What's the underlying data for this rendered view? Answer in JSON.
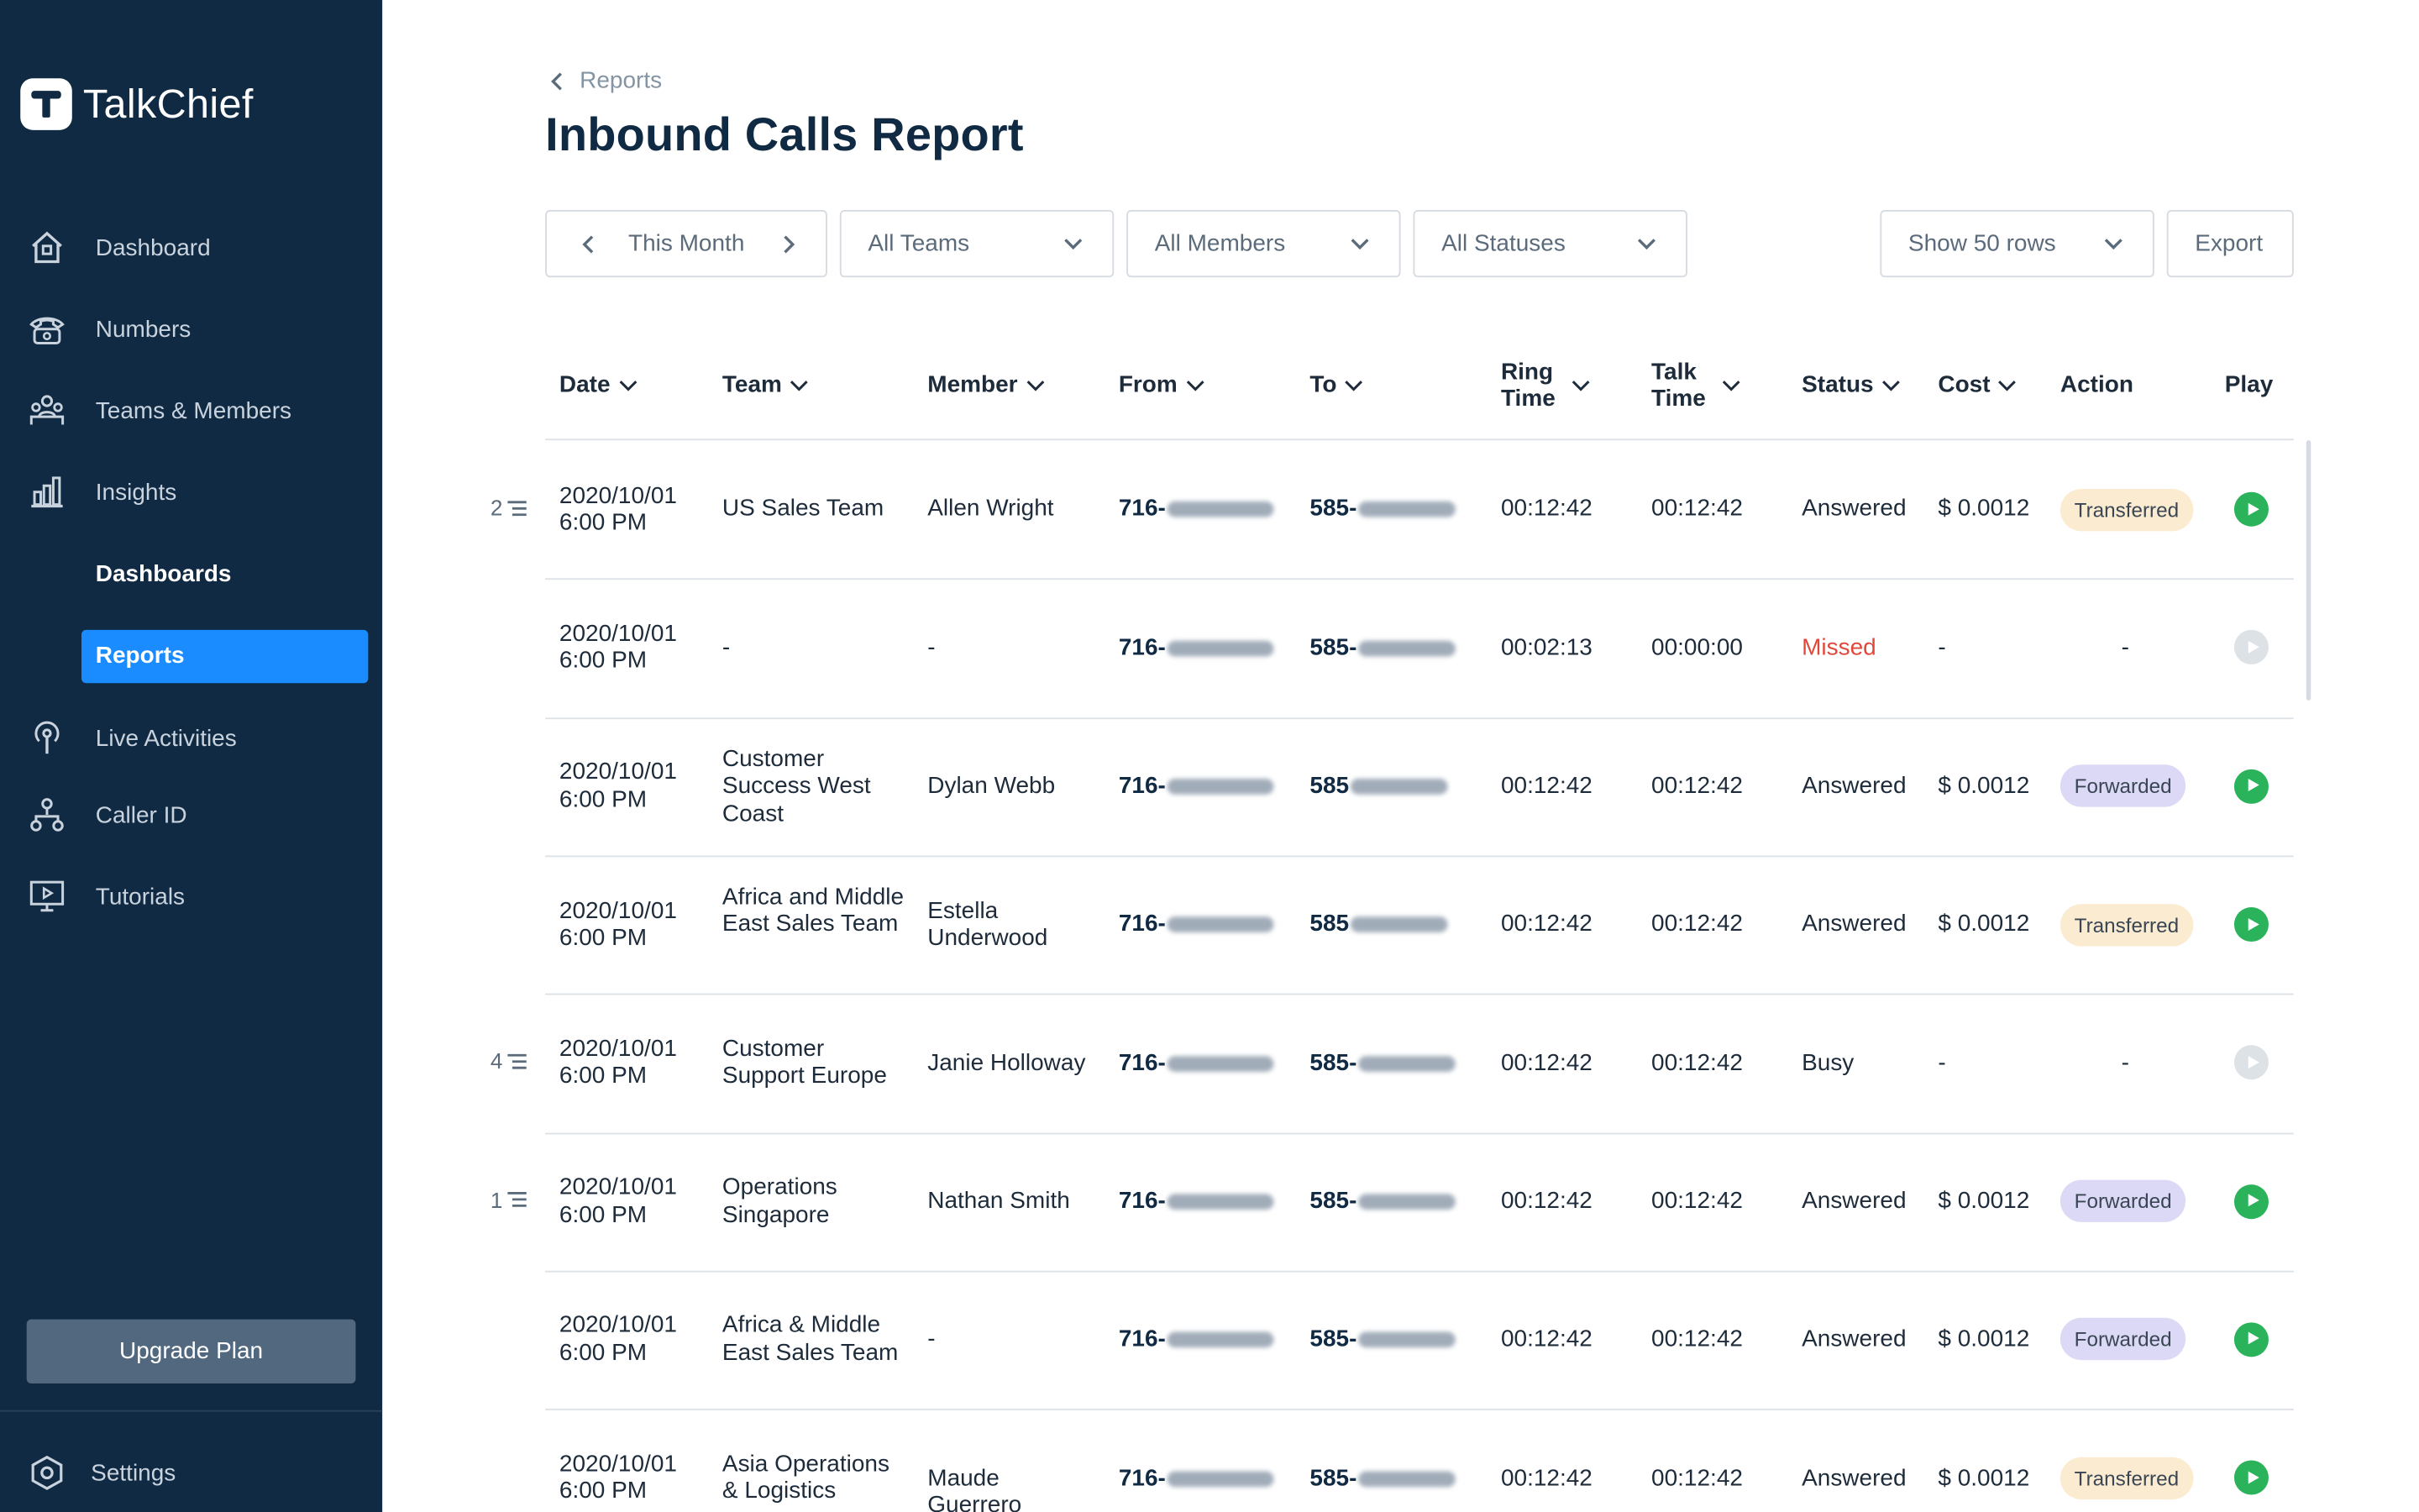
{
  "app": {
    "brand": "TalkChief"
  },
  "sidebar": {
    "items": [
      {
        "label": "Dashboard",
        "icon": "home-icon"
      },
      {
        "label": "Numbers",
        "icon": "phone-icon"
      },
      {
        "label": "Teams & Members",
        "icon": "team-icon"
      },
      {
        "label": "Insights",
        "icon": "bar-chart-icon"
      },
      {
        "label": "Live Activities",
        "icon": "broadcast-icon"
      },
      {
        "label": "Caller ID",
        "icon": "network-icon"
      },
      {
        "label": "Tutorials",
        "icon": "monitor-icon"
      }
    ],
    "insights_sub": {
      "dashboards": "Dashboards",
      "reports": "Reports"
    },
    "upgrade": "Upgrade Plan",
    "settings": "Settings"
  },
  "breadcrumb": "Reports",
  "title": "Inbound Calls Report",
  "filters": {
    "period": "This Month",
    "teams": "All Teams",
    "members": "All Members",
    "statuses": "All Statuses",
    "rows": "Show 50 rows",
    "export": "Export"
  },
  "columns": [
    "Date",
    "Team",
    "Member",
    "From",
    "To",
    "Ring Time",
    "Talk Time",
    "Status",
    "Cost",
    "Action",
    "Play"
  ],
  "rows": [
    {
      "group": "2",
      "date": "2020/10/01",
      "time": "6:00 PM",
      "team": "US Sales Team",
      "member": "Allen Wright",
      "from": "716-",
      "to": "585-",
      "ring": "00:12:42",
      "talk": "00:12:42",
      "status": "Answered",
      "cost": "$ 0.0012",
      "action": "Transferred",
      "play": true
    },
    {
      "group": "",
      "date": "2020/10/01",
      "time": "6:00 PM",
      "team": "-",
      "member": "-",
      "from": "716-",
      "to": "585-",
      "ring": "00:02:13",
      "talk": "00:00:00",
      "status": "Missed",
      "cost": "-",
      "action": "-",
      "play": false
    },
    {
      "group": "",
      "date": "2020/10/01",
      "time": "6:00 PM",
      "team": "Customer Success West Coast",
      "member": "Dylan Webb",
      "from": "716-",
      "to": "585",
      "ring": "00:12:42",
      "talk": "00:12:42",
      "status": "Answered",
      "cost": "$ 0.0012",
      "action": "Forwarded",
      "play": true
    },
    {
      "group": "",
      "date": "2020/10/01",
      "time": "6:00 PM",
      "team": "Africa and Middle East Sales Team",
      "member": "Estella Underwood",
      "from": "716-",
      "to": "585",
      "ring": "00:12:42",
      "talk": "00:12:42",
      "status": "Answered",
      "cost": "$ 0.0012",
      "action": "Transferred",
      "play": true
    },
    {
      "group": "4",
      "date": "2020/10/01",
      "time": "6:00 PM",
      "team": "Customer Support Europe",
      "member": "Janie Holloway",
      "from": "716-",
      "to": "585-",
      "ring": "00:12:42",
      "talk": "00:12:42",
      "status": "Busy",
      "cost": "-",
      "action": "-",
      "play": false
    },
    {
      "group": "1",
      "date": "2020/10/01",
      "time": "6:00 PM",
      "team": "Operations Singapore",
      "member": "Nathan Smith",
      "from": "716-",
      "to": "585-",
      "ring": "00:12:42",
      "talk": "00:12:42",
      "status": "Answered",
      "cost": "$ 0.0012",
      "action": "Forwarded",
      "play": true
    },
    {
      "group": "",
      "date": "2020/10/01",
      "time": "6:00 PM",
      "team": "Africa & Middle East Sales Team",
      "member": "-",
      "from": "716-",
      "to": "585-",
      "ring": "00:12:42",
      "talk": "00:12:42",
      "status": "Answered",
      "cost": "$ 0.0012",
      "action": "Forwarded",
      "play": true
    },
    {
      "group": "",
      "date": "2020/10/01",
      "time": "6:00 PM",
      "team": "Asia Operations & Logistics",
      "member": "Maude Guerrero",
      "from": "716-",
      "to": "585-",
      "ring": "00:12:42",
      "talk": "00:12:42",
      "status": "Answered",
      "cost": "$ 0.0012",
      "action": "Transferred",
      "play": true
    }
  ],
  "colors": {
    "sidebar": "#102a43",
    "accent": "#1a8cff",
    "play": "#2bb35b",
    "missed": "#e0483c"
  }
}
